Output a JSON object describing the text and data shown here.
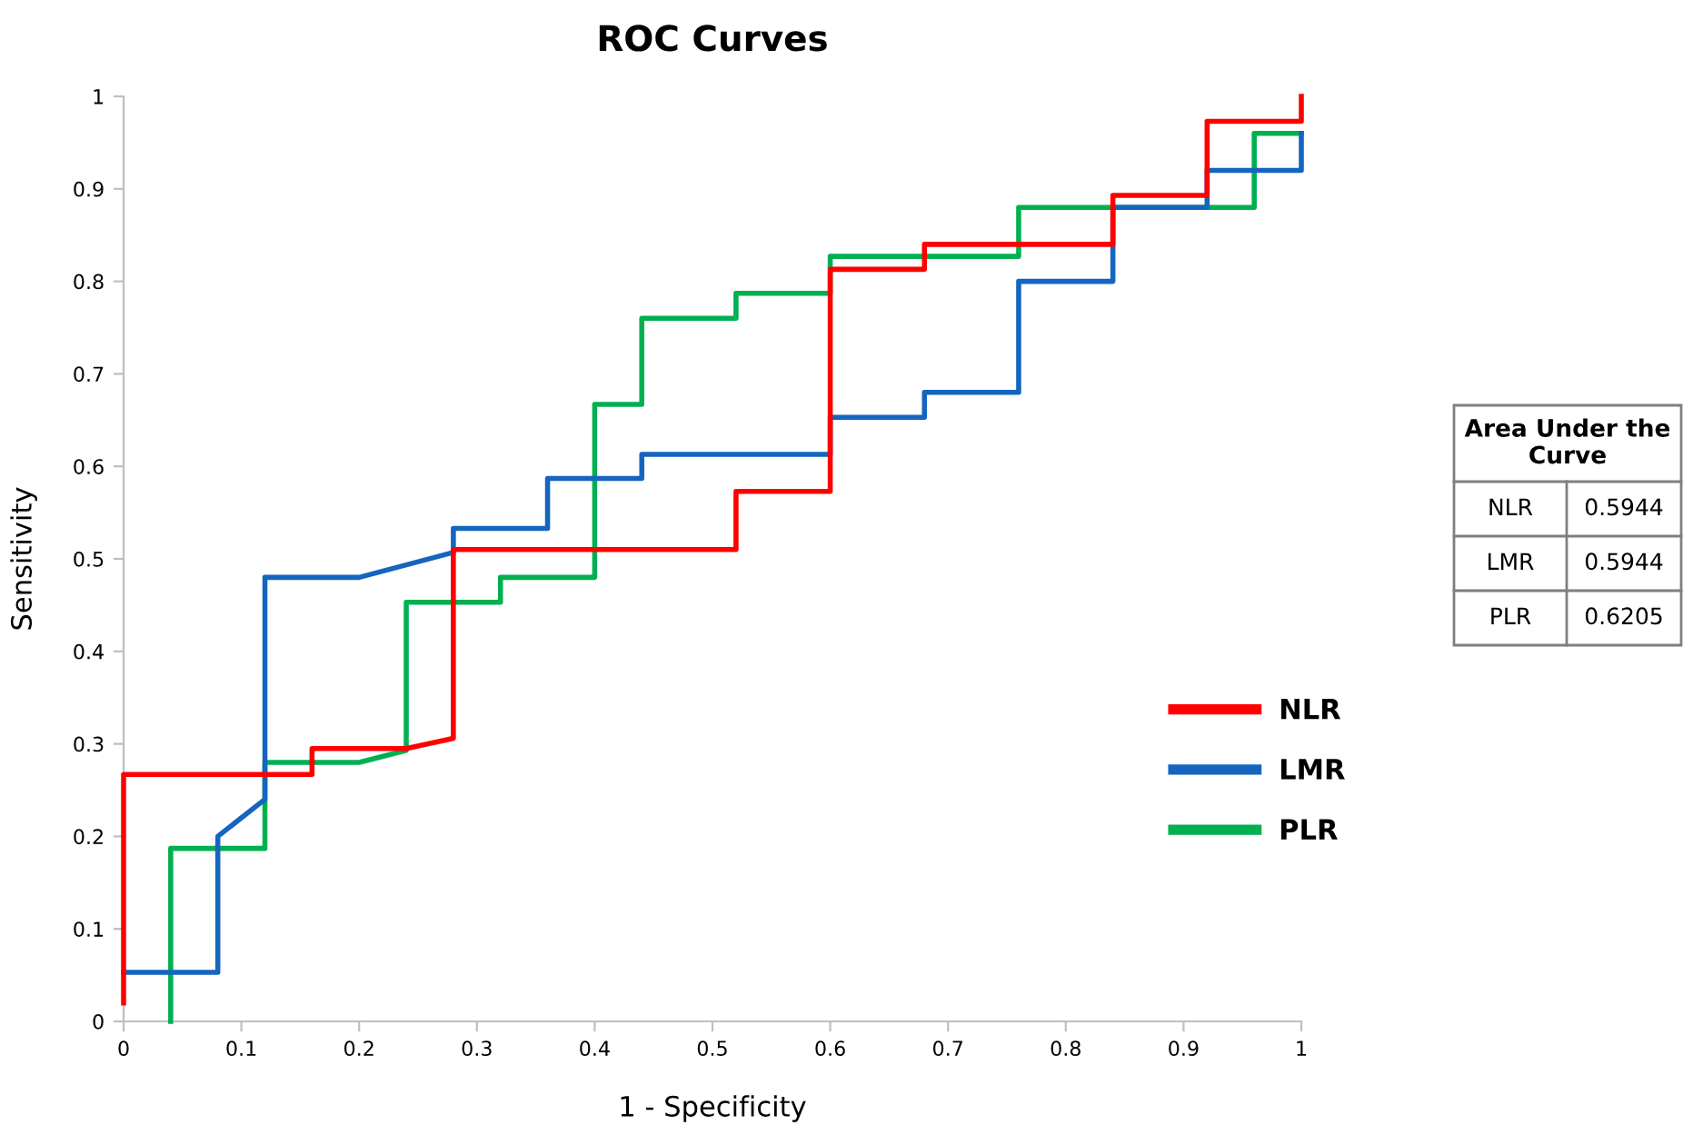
{
  "chart_data": {
    "type": "line",
    "title": "ROC Curves",
    "xlabel": "1 - Specificity",
    "ylabel": "Sensitivity",
    "xlim": [
      0,
      1
    ],
    "ylim": [
      0,
      1
    ],
    "xticks": [
      0,
      0.1,
      0.2,
      0.3,
      0.4,
      0.5,
      0.6,
      0.7,
      0.8,
      0.9,
      1
    ],
    "yticks": [
      0,
      0.1,
      0.2,
      0.3,
      0.4,
      0.5,
      0.6,
      0.7,
      0.8,
      0.9,
      1
    ],
    "grid": false,
    "legend": "right",
    "marker": "none",
    "line_style": "solid",
    "series": [
      {
        "name": "NLR",
        "color": "#ff0000",
        "x": [
          0,
          0,
          0.16,
          0.16,
          0.24,
          0.28,
          0.28,
          0.52,
          0.52,
          0.6,
          0.6,
          0.68,
          0.68,
          0.84,
          0.84,
          0.92,
          0.92,
          1,
          1
        ],
        "values": [
          0.02,
          0.267,
          0.267,
          0.295,
          0.295,
          0.306,
          0.51,
          0.51,
          0.573,
          0.573,
          0.813,
          0.813,
          0.84,
          0.84,
          0.893,
          0.893,
          0.973,
          0.973,
          1
        ]
      },
      {
        "name": "LMR",
        "color": "#1565c0",
        "x": [
          0,
          0.08,
          0.08,
          0.12,
          0.12,
          0.2,
          0.28,
          0.28,
          0.36,
          0.36,
          0.44,
          0.44,
          0.6,
          0.6,
          0.68,
          0.68,
          0.76,
          0.76,
          0.84,
          0.84,
          0.92,
          0.92,
          1,
          1
        ],
        "values": [
          0.053,
          0.053,
          0.2,
          0.24,
          0.48,
          0.48,
          0.507,
          0.533,
          0.533,
          0.587,
          0.587,
          0.613,
          0.613,
          0.653,
          0.653,
          0.68,
          0.68,
          0.8,
          0.8,
          0.88,
          0.88,
          0.92,
          0.92,
          0.96
        ]
      },
      {
        "name": "PLR",
        "color": "#00b050",
        "x": [
          0.04,
          0.04,
          0.12,
          0.12,
          0.2,
          0.24,
          0.24,
          0.32,
          0.32,
          0.4,
          0.4,
          0.44,
          0.44,
          0.52,
          0.52,
          0.6,
          0.6,
          0.76,
          0.76,
          0.96,
          0.96,
          1
        ],
        "values": [
          0,
          0.187,
          0.187,
          0.28,
          0.28,
          0.293,
          0.453,
          0.453,
          0.48,
          0.48,
          0.667,
          0.667,
          0.76,
          0.76,
          0.787,
          0.787,
          0.827,
          0.827,
          0.88,
          0.88,
          0.96,
          0.96
        ]
      }
    ],
    "annotations": [
      "Area Under the Curve",
      "NLR",
      "0.5944",
      "LMR",
      "0.5944",
      "PLR",
      "0.6205"
    ]
  }
}
